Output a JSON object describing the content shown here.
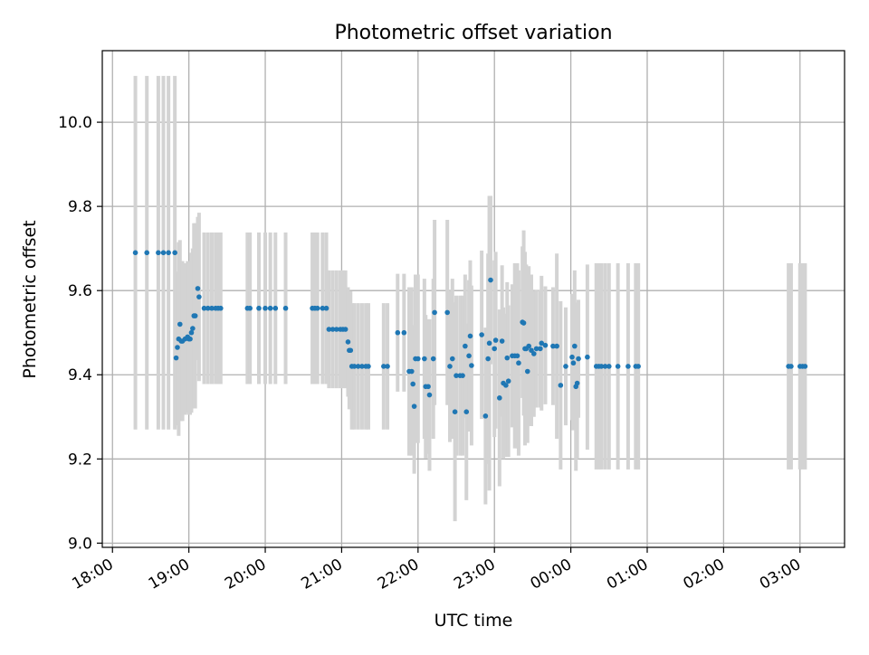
{
  "chart_data": {
    "type": "scatter",
    "title": "Photometric offset variation",
    "xlabel": "UTC time",
    "ylabel": "Photometric offset",
    "x_ticks": [
      "18:00",
      "19:00",
      "20:00",
      "21:00",
      "22:00",
      "23:00",
      "00:00",
      "01:00",
      "02:00",
      "03:00"
    ],
    "y_ticks": [
      "9.0",
      "9.2",
      "9.4",
      "9.6",
      "9.8",
      "10.0"
    ],
    "xlim": [
      "17:52",
      "03:35"
    ],
    "ylim": [
      8.99,
      10.17
    ],
    "grid": true,
    "colors": {
      "point": "#1f77b4",
      "errorbar": "#d3d3d3",
      "grid": "#b0b0b0"
    },
    "points": [
      {
        "t": "18:18",
        "y": 9.69,
        "e": 0.42
      },
      {
        "t": "18:27",
        "y": 9.69,
        "e": 0.42
      },
      {
        "t": "18:36",
        "y": 9.69,
        "e": 0.42
      },
      {
        "t": "18:40",
        "y": 9.69,
        "e": 0.42
      },
      {
        "t": "18:44",
        "y": 9.69,
        "e": 0.42
      },
      {
        "t": "18:49",
        "y": 9.69,
        "e": 0.42
      },
      {
        "t": "18:50",
        "y": 9.44,
        "e": 0.16
      },
      {
        "t": "18:51",
        "y": 9.465,
        "e": 0.18
      },
      {
        "t": "18:52",
        "y": 9.485,
        "e": 0.23
      },
      {
        "t": "18:53",
        "y": 9.52,
        "e": 0.2
      },
      {
        "t": "18:54",
        "y": 9.48,
        "e": 0.19
      },
      {
        "t": "18:55",
        "y": 9.48,
        "e": 0.19
      },
      {
        "t": "18:57",
        "y": 9.485,
        "e": 0.18
      },
      {
        "t": "18:59",
        "y": 9.49,
        "e": 0.18
      },
      {
        "t": "19:00",
        "y": 9.485,
        "e": 0.18
      },
      {
        "t": "19:01",
        "y": 9.485,
        "e": 0.18
      },
      {
        "t": "19:02",
        "y": 9.5,
        "e": 0.19
      },
      {
        "t": "19:03",
        "y": 9.51,
        "e": 0.19
      },
      {
        "t": "19:04",
        "y": 9.54,
        "e": 0.22
      },
      {
        "t": "19:05",
        "y": 9.54,
        "e": 0.22
      },
      {
        "t": "19:07",
        "y": 9.605,
        "e": 0.17
      },
      {
        "t": "19:08",
        "y": 9.585,
        "e": 0.2
      },
      {
        "t": "19:12",
        "y": 9.558,
        "e": 0.18
      },
      {
        "t": "19:15",
        "y": 9.558,
        "e": 0.18
      },
      {
        "t": "19:18",
        "y": 9.558,
        "e": 0.18
      },
      {
        "t": "19:21",
        "y": 9.558,
        "e": 0.18
      },
      {
        "t": "19:23",
        "y": 9.558,
        "e": 0.18
      },
      {
        "t": "19:25",
        "y": 9.558,
        "e": 0.18
      },
      {
        "t": "19:46",
        "y": 9.558,
        "e": 0.18
      },
      {
        "t": "19:48",
        "y": 9.558,
        "e": 0.18
      },
      {
        "t": "19:55",
        "y": 9.558,
        "e": 0.18
      },
      {
        "t": "20:00",
        "y": 9.558,
        "e": 0.18
      },
      {
        "t": "20:04",
        "y": 9.558,
        "e": 0.18
      },
      {
        "t": "20:08",
        "y": 9.558,
        "e": 0.18
      },
      {
        "t": "20:16",
        "y": 9.558,
        "e": 0.18
      },
      {
        "t": "20:37",
        "y": 9.558,
        "e": 0.18
      },
      {
        "t": "20:39",
        "y": 9.558,
        "e": 0.18
      },
      {
        "t": "20:41",
        "y": 9.558,
        "e": 0.18
      },
      {
        "t": "20:45",
        "y": 9.558,
        "e": 0.18
      },
      {
        "t": "20:48",
        "y": 9.558,
        "e": 0.18
      },
      {
        "t": "20:50",
        "y": 9.508,
        "e": 0.14
      },
      {
        "t": "20:53",
        "y": 9.508,
        "e": 0.14
      },
      {
        "t": "20:56",
        "y": 9.508,
        "e": 0.14
      },
      {
        "t": "20:59",
        "y": 9.508,
        "e": 0.14
      },
      {
        "t": "21:01",
        "y": 9.508,
        "e": 0.14
      },
      {
        "t": "21:03",
        "y": 9.508,
        "e": 0.14
      },
      {
        "t": "21:05",
        "y": 9.478,
        "e": 0.13
      },
      {
        "t": "21:06",
        "y": 9.458,
        "e": 0.14
      },
      {
        "t": "21:07",
        "y": 9.458,
        "e": 0.14
      },
      {
        "t": "21:08",
        "y": 9.42,
        "e": 0.15
      },
      {
        "t": "21:10",
        "y": 9.42,
        "e": 0.15
      },
      {
        "t": "21:13",
        "y": 9.42,
        "e": 0.15
      },
      {
        "t": "21:16",
        "y": 9.42,
        "e": 0.15
      },
      {
        "t": "21:19",
        "y": 9.42,
        "e": 0.15
      },
      {
        "t": "21:21",
        "y": 9.42,
        "e": 0.15
      },
      {
        "t": "21:33",
        "y": 9.42,
        "e": 0.15
      },
      {
        "t": "21:36",
        "y": 9.42,
        "e": 0.15
      },
      {
        "t": "21:44",
        "y": 9.5,
        "e": 0.14
      },
      {
        "t": "21:49",
        "y": 9.5,
        "e": 0.14
      },
      {
        "t": "21:53",
        "y": 9.408,
        "e": 0.2
      },
      {
        "t": "21:55",
        "y": 9.408,
        "e": 0.2
      },
      {
        "t": "21:56",
        "y": 9.378,
        "e": 0.14
      },
      {
        "t": "21:57",
        "y": 9.325,
        "e": 0.16
      },
      {
        "t": "21:58",
        "y": 9.438,
        "e": 0.2
      },
      {
        "t": "22:00",
        "y": 9.438,
        "e": 0.2
      },
      {
        "t": "22:05",
        "y": 9.438,
        "e": 0.19
      },
      {
        "t": "22:06",
        "y": 9.372,
        "e": 0.17
      },
      {
        "t": "22:08",
        "y": 9.372,
        "e": 0.16
      },
      {
        "t": "22:09",
        "y": 9.352,
        "e": 0.18
      },
      {
        "t": "22:12",
        "y": 9.438,
        "e": 0.19
      },
      {
        "t": "22:13",
        "y": 9.548,
        "e": 0.22
      },
      {
        "t": "22:23",
        "y": 9.548,
        "e": 0.22
      },
      {
        "t": "22:25",
        "y": 9.42,
        "e": 0.18
      },
      {
        "t": "22:27",
        "y": 9.438,
        "e": 0.19
      },
      {
        "t": "22:29",
        "y": 9.312,
        "e": 0.26
      },
      {
        "t": "22:30",
        "y": 9.398,
        "e": 0.19
      },
      {
        "t": "22:33",
        "y": 9.398,
        "e": 0.19
      },
      {
        "t": "22:35",
        "y": 9.398,
        "e": 0.19
      },
      {
        "t": "22:37",
        "y": 9.468,
        "e": 0.17
      },
      {
        "t": "22:38",
        "y": 9.312,
        "e": 0.21
      },
      {
        "t": "22:40",
        "y": 9.445,
        "e": 0.18
      },
      {
        "t": "22:41",
        "y": 9.492,
        "e": 0.18
      },
      {
        "t": "22:42",
        "y": 9.422,
        "e": 0.19
      },
      {
        "t": "22:50",
        "y": 9.495,
        "e": 0.2
      },
      {
        "t": "22:53",
        "y": 9.302,
        "e": 0.21
      },
      {
        "t": "22:55",
        "y": 9.438,
        "e": 0.25
      },
      {
        "t": "22:56",
        "y": 9.475,
        "e": 0.35
      },
      {
        "t": "22:57",
        "y": 9.625,
        "e": 0.2
      },
      {
        "t": "23:00",
        "y": 9.462,
        "e": 0.21
      },
      {
        "t": "23:01",
        "y": 9.482,
        "e": 0.21
      },
      {
        "t": "23:04",
        "y": 9.345,
        "e": 0.21
      },
      {
        "t": "23:06",
        "y": 9.48,
        "e": 0.18
      },
      {
        "t": "23:07",
        "y": 9.38,
        "e": 0.18
      },
      {
        "t": "23:09",
        "y": 9.375,
        "e": 0.17
      },
      {
        "t": "23:10",
        "y": 9.44,
        "e": 0.18
      },
      {
        "t": "23:11",
        "y": 9.385,
        "e": 0.18
      },
      {
        "t": "23:14",
        "y": 9.445,
        "e": 0.17
      },
      {
        "t": "23:16",
        "y": 9.445,
        "e": 0.22
      },
      {
        "t": "23:18",
        "y": 9.445,
        "e": 0.22
      },
      {
        "t": "23:19",
        "y": 9.428,
        "e": 0.22
      },
      {
        "t": "23:22",
        "y": 9.525,
        "e": 0.18
      },
      {
        "t": "23:23",
        "y": 9.523,
        "e": 0.22
      },
      {
        "t": "23:24",
        "y": 9.462,
        "e": 0.23
      },
      {
        "t": "23:25",
        "y": 9.462,
        "e": 0.2
      },
      {
        "t": "23:26",
        "y": 9.408,
        "e": 0.17
      },
      {
        "t": "23:27",
        "y": 9.468,
        "e": 0.19
      },
      {
        "t": "23:29",
        "y": 9.458,
        "e": 0.18
      },
      {
        "t": "23:31",
        "y": 9.45,
        "e": 0.15
      },
      {
        "t": "23:33",
        "y": 9.462,
        "e": 0.14
      },
      {
        "t": "23:36",
        "y": 9.462,
        "e": 0.14
      },
      {
        "t": "23:37",
        "y": 9.475,
        "e": 0.16
      },
      {
        "t": "23:40",
        "y": 9.47,
        "e": 0.14
      },
      {
        "t": "23:46",
        "y": 9.468,
        "e": 0.14
      },
      {
        "t": "23:49",
        "y": 9.468,
        "e": 0.22
      },
      {
        "t": "23:52",
        "y": 9.375,
        "e": 0.2
      },
      {
        "t": "23:56",
        "y": 9.42,
        "e": 0.14
      },
      {
        "t": "00:01",
        "y": 9.442,
        "e": 0.15
      },
      {
        "t": "00:02",
        "y": 9.428,
        "e": 0.16
      },
      {
        "t": "00:03",
        "y": 9.468,
        "e": 0.18
      },
      {
        "t": "00:04",
        "y": 9.372,
        "e": 0.2
      },
      {
        "t": "00:05",
        "y": 9.38,
        "e": 0.18
      },
      {
        "t": "00:06",
        "y": 9.438,
        "e": 0.14
      },
      {
        "t": "00:13",
        "y": 9.442,
        "e": 0.22
      },
      {
        "t": "00:20",
        "y": 9.42,
        "e": 0.245
      },
      {
        "t": "00:22",
        "y": 9.42,
        "e": 0.245
      },
      {
        "t": "00:24",
        "y": 9.42,
        "e": 0.245
      },
      {
        "t": "00:27",
        "y": 9.42,
        "e": 0.245
      },
      {
        "t": "00:30",
        "y": 9.42,
        "e": 0.245
      },
      {
        "t": "00:37",
        "y": 9.42,
        "e": 0.245
      },
      {
        "t": "00:45",
        "y": 9.42,
        "e": 0.245
      },
      {
        "t": "00:51",
        "y": 9.42,
        "e": 0.245
      },
      {
        "t": "00:53",
        "y": 9.42,
        "e": 0.245
      },
      {
        "t": "02:51",
        "y": 9.42,
        "e": 0.245
      },
      {
        "t": "02:53",
        "y": 9.42,
        "e": 0.245
      },
      {
        "t": "03:00",
        "y": 9.42,
        "e": 0.245
      },
      {
        "t": "03:02",
        "y": 9.42,
        "e": 0.245
      },
      {
        "t": "03:04",
        "y": 9.42,
        "e": 0.245
      }
    ]
  }
}
